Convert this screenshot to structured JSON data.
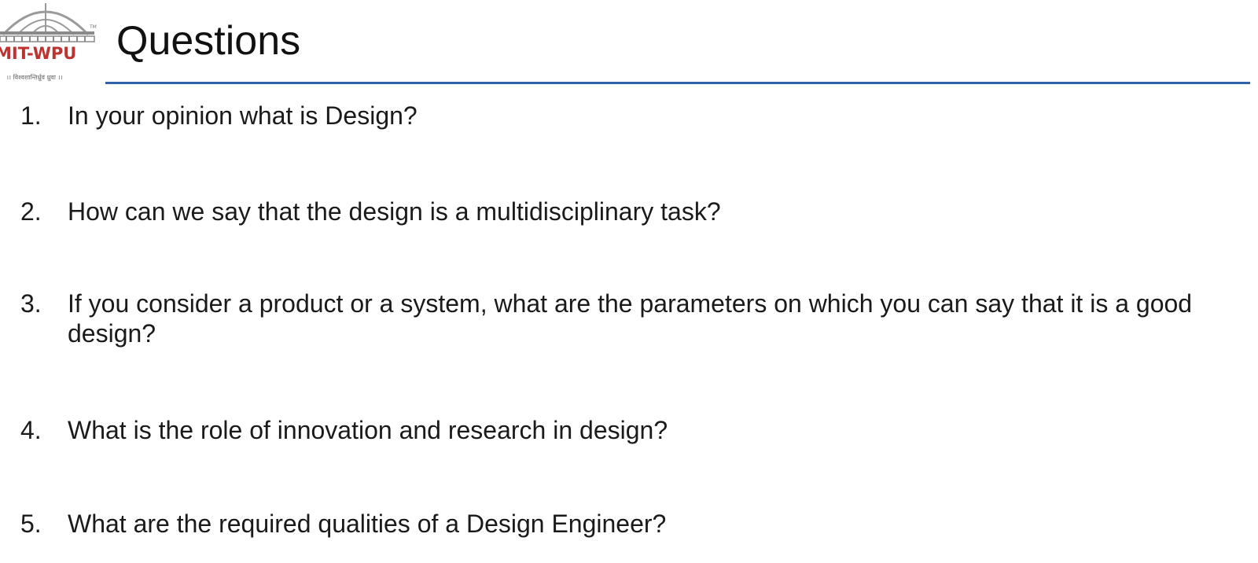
{
  "logo": {
    "name": "MIT-WPU",
    "trademark": "TM",
    "motto": "।। विश्वशान्तिर्ध्रुवं ध्रुवा ।।",
    "colors": {
      "dome": "#9a9a9a",
      "text": "#c0322d"
    }
  },
  "slide": {
    "title": "Questions",
    "rule_color": "#2f63a8"
  },
  "questions": [
    {
      "number": "1.",
      "text": "In your opinion what is Design?"
    },
    {
      "number": "2.",
      "text": "How can we say that the design is a multidisciplinary task?"
    },
    {
      "number": "3.",
      "text": "If you consider a product or a system, what are the parameters on which you can say that it is a good design?"
    },
    {
      "number": "4.",
      "text": "What is the role of innovation and research in design?"
    },
    {
      "number": "5.",
      "text": "What are the required qualities of a Design Engineer?"
    }
  ]
}
